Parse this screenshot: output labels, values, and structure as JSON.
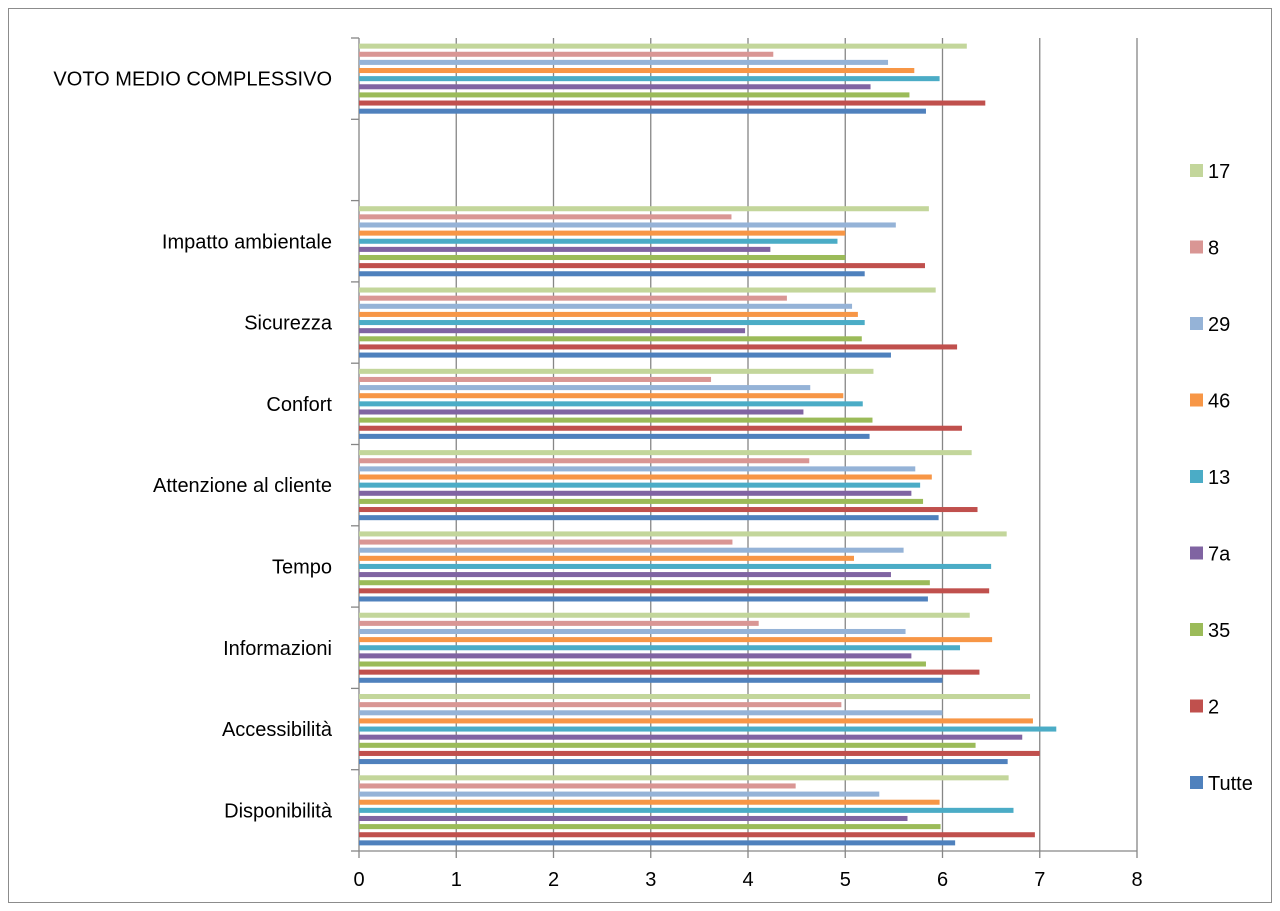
{
  "chart_data": {
    "type": "bar",
    "orientation": "horizontal",
    "categories": [
      "Disponibilità",
      "Accessibilità",
      "Informazioni",
      "Tempo",
      "Attenzione al cliente",
      "Confort",
      "Sicurezza",
      "Impatto ambientale",
      "",
      "VOTO MEDIO COMPLESSIVO"
    ],
    "xlim": [
      0,
      8
    ],
    "xticks": [
      "0",
      "1",
      "2",
      "3",
      "4",
      "5",
      "6",
      "7",
      "8"
    ],
    "grid": true,
    "legend_position": "right",
    "series": [
      {
        "name": "Tutte",
        "color": "#4f81bd",
        "values": [
          6.13,
          6.67,
          6.0,
          5.85,
          5.96,
          5.25,
          5.47,
          5.2,
          null,
          5.83
        ]
      },
      {
        "name": "2",
        "color": "#c0504d",
        "values": [
          6.95,
          7.0,
          6.38,
          6.48,
          6.36,
          6.2,
          6.15,
          5.82,
          null,
          6.44
        ]
      },
      {
        "name": "35",
        "color": "#9bbb59",
        "values": [
          5.98,
          6.34,
          5.83,
          5.87,
          5.8,
          5.28,
          5.17,
          5.0,
          null,
          5.66
        ]
      },
      {
        "name": "7a",
        "color": "#8064a2",
        "values": [
          5.64,
          6.82,
          5.68,
          5.47,
          5.68,
          4.57,
          3.97,
          4.23,
          null,
          5.26
        ]
      },
      {
        "name": "13",
        "color": "#4bacc6",
        "values": [
          6.73,
          7.17,
          6.18,
          6.5,
          5.77,
          5.18,
          5.2,
          4.92,
          null,
          5.97
        ]
      },
      {
        "name": "46",
        "color": "#f79646",
        "values": [
          5.97,
          6.93,
          6.51,
          5.09,
          5.89,
          4.98,
          5.13,
          5.0,
          null,
          5.71
        ]
      },
      {
        "name": "29",
        "color": "#95b3d7",
        "values": [
          5.35,
          6.0,
          5.62,
          5.6,
          5.72,
          4.64,
          5.07,
          5.52,
          null,
          5.44
        ]
      },
      {
        "name": "8",
        "color": "#d99694",
        "values": [
          4.49,
          4.96,
          4.11,
          3.84,
          4.63,
          3.62,
          4.4,
          3.83,
          null,
          4.26
        ]
      },
      {
        "name": "17",
        "color": "#c3d69b",
        "values": [
          6.68,
          6.9,
          6.28,
          6.66,
          6.3,
          5.29,
          5.93,
          5.86,
          null,
          6.25
        ]
      }
    ]
  }
}
